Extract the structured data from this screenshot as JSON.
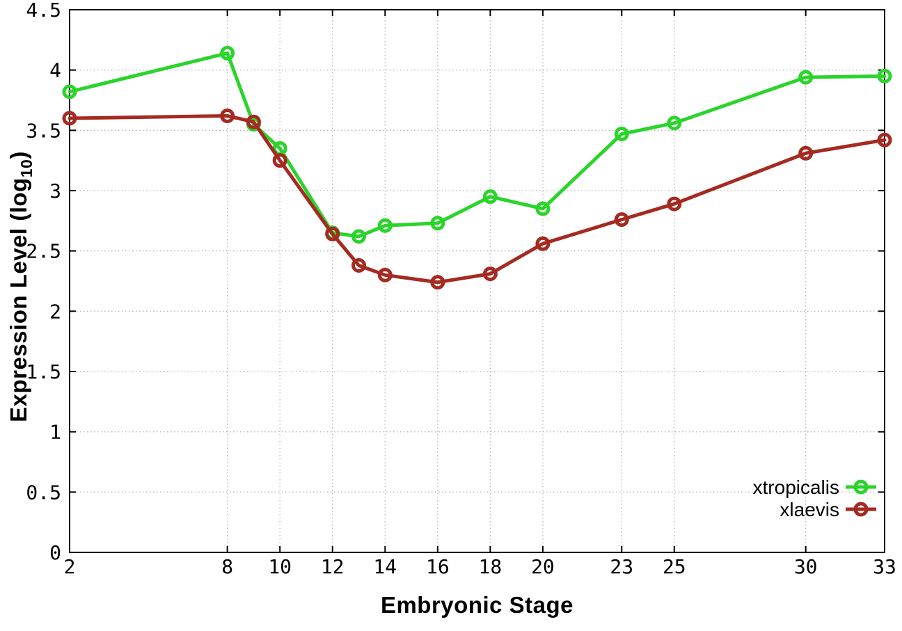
{
  "chart_data": {
    "type": "line",
    "title": "",
    "xlabel": "Embryonic Stage",
    "ylabel": "Expression Level (log10)",
    "ylabel_parts": {
      "main": "Expression Level (log",
      "sub": "10",
      "close": ")"
    },
    "x": [
      2,
      8,
      9,
      10,
      12,
      13,
      14,
      16,
      18,
      20,
      23,
      25,
      30,
      33
    ],
    "series": [
      {
        "name": "xtropicalis",
        "color": "#2bd42b",
        "values": [
          3.82,
          4.14,
          3.55,
          3.35,
          2.65,
          2.62,
          2.71,
          2.73,
          2.95,
          2.85,
          3.47,
          3.56,
          3.94,
          3.95
        ]
      },
      {
        "name": "xlaevis",
        "color": "#a52a21",
        "values": [
          3.6,
          3.62,
          3.57,
          3.25,
          2.64,
          2.38,
          2.3,
          2.24,
          2.31,
          2.56,
          2.76,
          2.89,
          3.31,
          3.42
        ]
      }
    ],
    "xticks": [
      2,
      8,
      10,
      12,
      14,
      16,
      18,
      20,
      23,
      25,
      30,
      33
    ],
    "yticks": [
      0,
      0.5,
      1,
      1.5,
      2,
      2.5,
      3,
      3.5,
      4,
      4.5
    ],
    "ytick_labels": [
      "0",
      "0.5",
      "1",
      "1.5",
      "2",
      "2.5",
      "3",
      "3.5",
      "4",
      "4.5"
    ],
    "xlim": [
      2,
      33
    ],
    "ylim": [
      0,
      4.5
    ],
    "grid": true,
    "legend_position": "bottom-right",
    "colors": {
      "axis": "#000000",
      "grid": "#b4b4b4",
      "background": "#ffffff",
      "text": "#000000"
    }
  }
}
